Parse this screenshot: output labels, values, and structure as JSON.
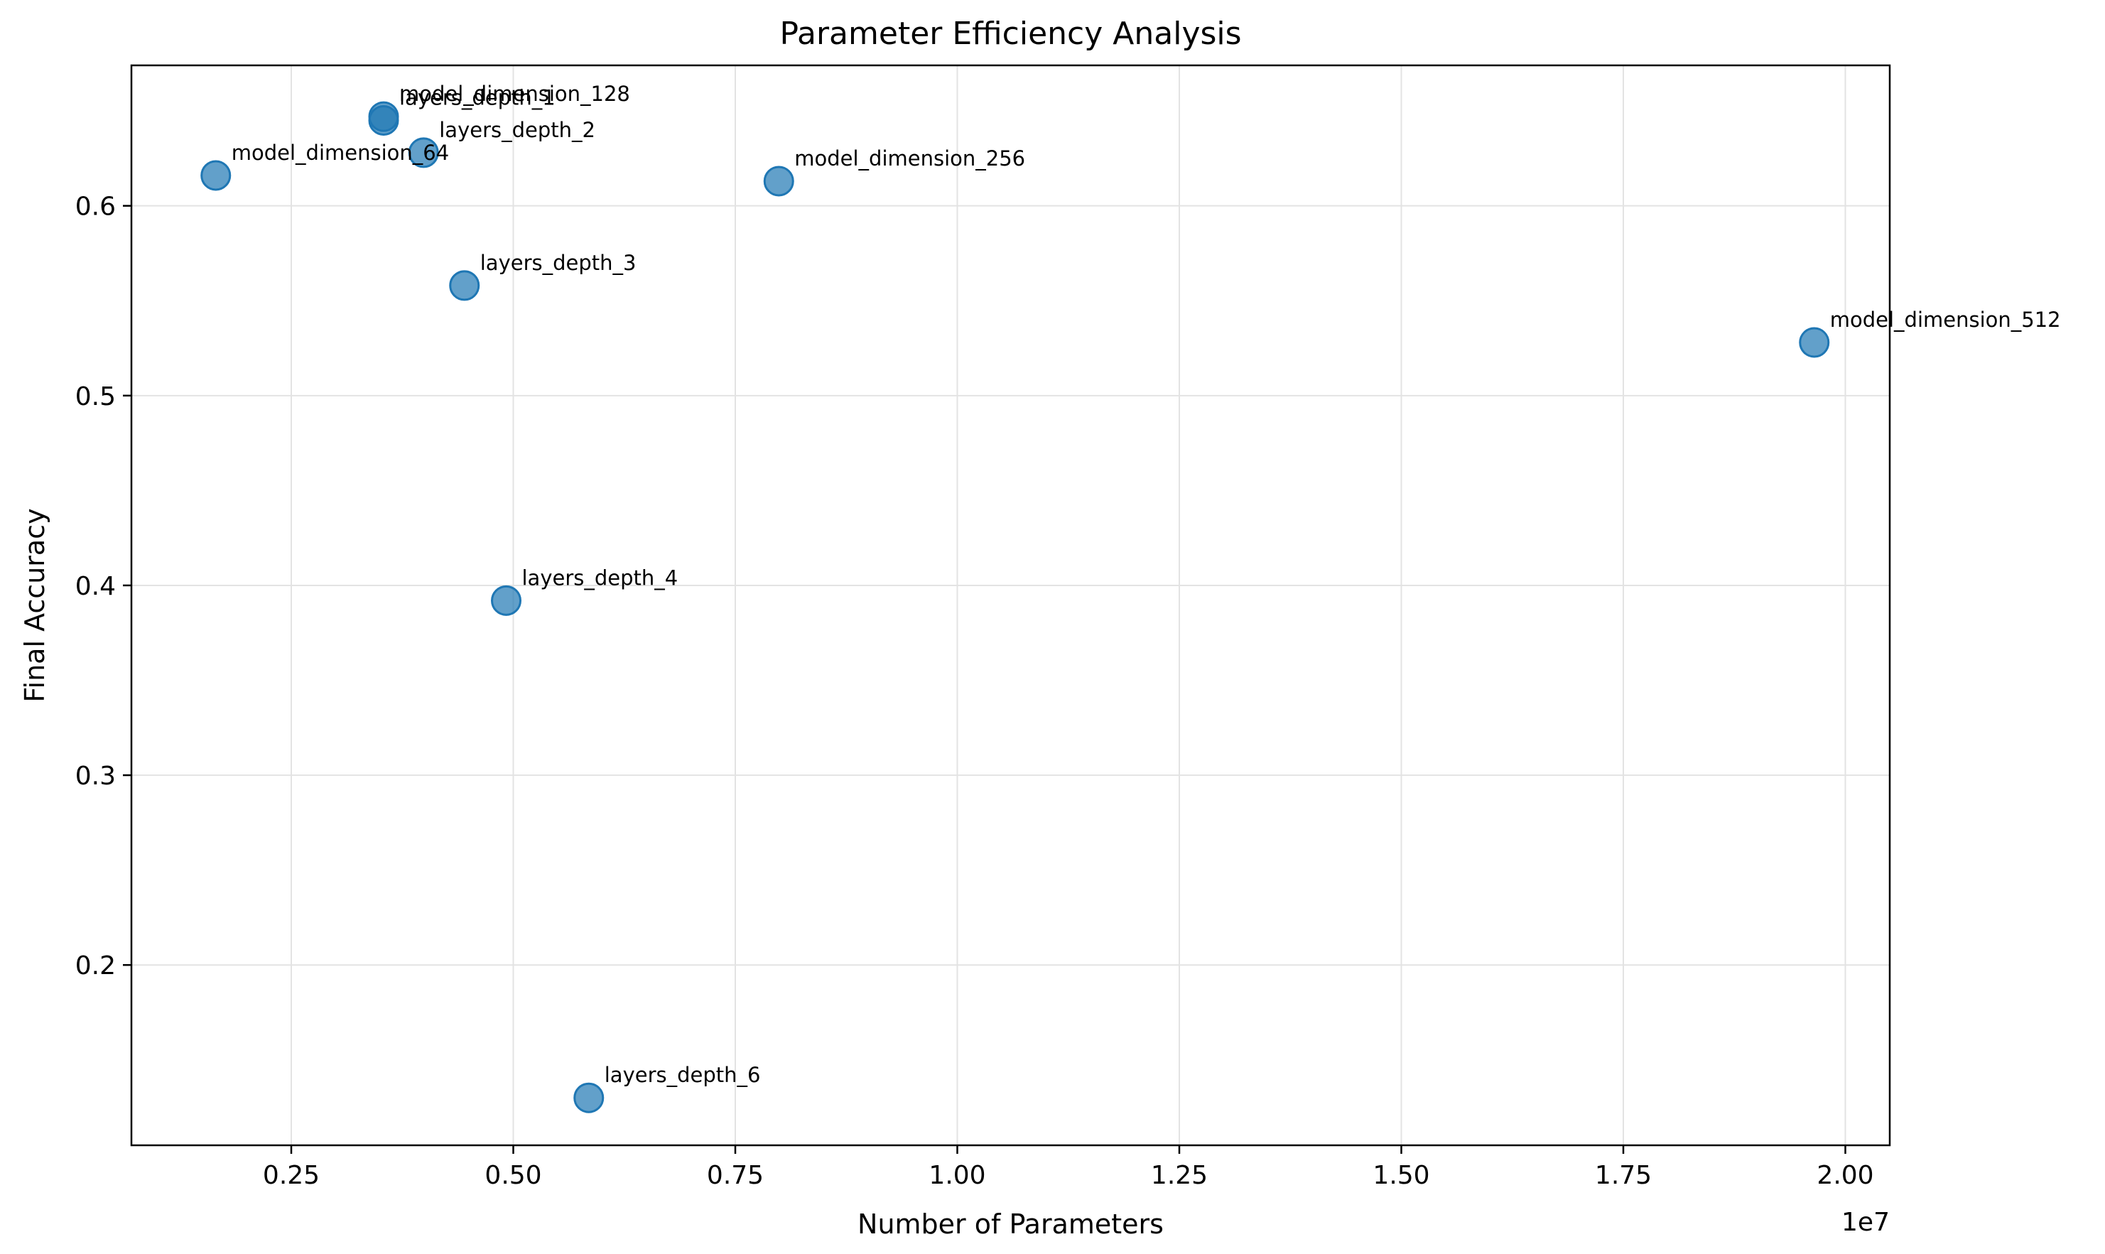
{
  "chart_data": {
    "type": "scatter",
    "title": "Parameter Efficiency Analysis",
    "xlabel": "Number of Parameters",
    "ylabel": "Final Accuracy",
    "x_offset_label": "1e7",
    "xlim": [
      700000,
      20500000
    ],
    "ylim": [
      0.105,
      0.674
    ],
    "x_ticks": [
      2500000,
      5000000,
      7500000,
      10000000,
      12500000,
      15000000,
      17500000,
      20000000
    ],
    "x_tick_labels": [
      "0.25",
      "0.50",
      "0.75",
      "1.00",
      "1.25",
      "1.50",
      "1.75",
      "2.00"
    ],
    "y_ticks": [
      0.2,
      0.3,
      0.4,
      0.5,
      0.6
    ],
    "y_tick_labels": [
      "0.2",
      "0.3",
      "0.4",
      "0.5",
      "0.6"
    ],
    "grid": true,
    "marker_color": "#1f77b4",
    "points": [
      {
        "label": "model_dimension_64",
        "x": 1650000,
        "y": 0.616
      },
      {
        "label": "model_dimension_128",
        "x": 3540000,
        "y": 0.647
      },
      {
        "label": "layers_depth_1",
        "x": 3540000,
        "y": 0.645
      },
      {
        "label": "layers_depth_2",
        "x": 3990000,
        "y": 0.628
      },
      {
        "label": "layers_depth_3",
        "x": 4450000,
        "y": 0.558
      },
      {
        "label": "layers_depth_4",
        "x": 4920000,
        "y": 0.392
      },
      {
        "label": "layers_depth_6",
        "x": 5850000,
        "y": 0.13
      },
      {
        "label": "model_dimension_256",
        "x": 7990000,
        "y": 0.613
      },
      {
        "label": "model_dimension_512",
        "x": 19650000,
        "y": 0.528
      }
    ]
  }
}
